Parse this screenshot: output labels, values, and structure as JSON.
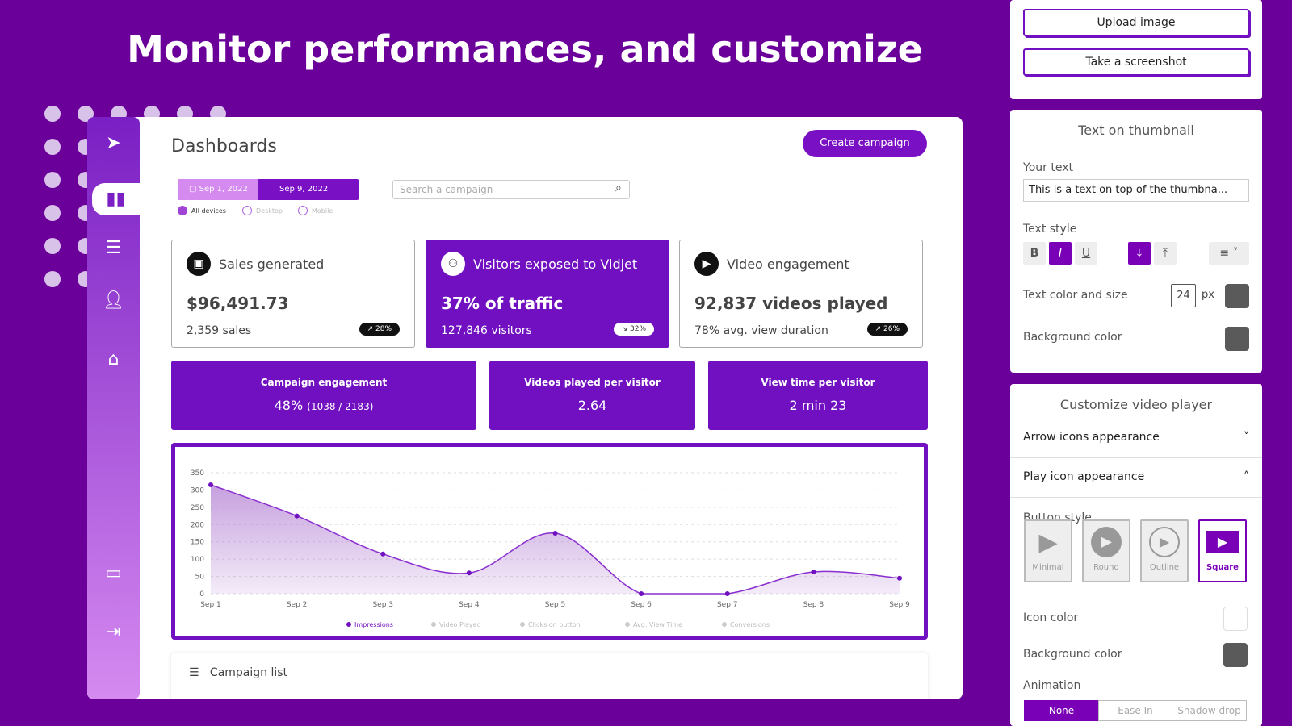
{
  "hero": {
    "title": "Monitor performances, and customize"
  },
  "sidebar": {
    "items": [
      {
        "icon": "logo-play-icon"
      },
      {
        "icon": "bar-chart-icon",
        "active": true
      },
      {
        "icon": "menu-icon"
      },
      {
        "icon": "user-icon"
      },
      {
        "icon": "home-icon"
      },
      {
        "icon": "chat-icon"
      },
      {
        "icon": "logout-icon"
      }
    ]
  },
  "dashboard": {
    "title": "Dashboards",
    "create_label": "Create campaign",
    "date_from": "Sep 1, 2022",
    "date_to": "Sep 9, 2022",
    "devices": [
      {
        "label": "All devices",
        "selected": true
      },
      {
        "label": "Desktop",
        "selected": false
      },
      {
        "label": "Mobile",
        "selected": false
      }
    ],
    "search_placeholder": "Search a campaign",
    "cards": [
      {
        "title": "Sales generated",
        "value": "$96,491.73",
        "sub": "2,359 sales",
        "badge": "↗ 28%",
        "icon": "shopping-bag-icon"
      },
      {
        "title": "Visitors exposed to Vidjet",
        "value": "37% of traffic",
        "sub": "127,846 visitors",
        "badge": "↘ 32%",
        "icon": "users-icon"
      },
      {
        "title": "Video engagement",
        "value": "92,837 videos played",
        "sub": "78% avg. view duration",
        "badge": "↗ 26%",
        "icon": "play-circle-icon"
      }
    ],
    "stats": [
      {
        "label": "Campaign engagement",
        "value": "48%",
        "detail": "(1038 / 2183)"
      },
      {
        "label": "Videos played per visitor",
        "value": "2.64"
      },
      {
        "label": "View time per visitor",
        "value": "2 min 23"
      }
    ],
    "campaign_list": "Campaign list",
    "accent": "#7010c0"
  },
  "chart_data": {
    "type": "area",
    "categories": [
      "Sep 1",
      "Sep 2",
      "Sep 3",
      "Sep 4",
      "Sep 5",
      "Sep 6",
      "Sep 7",
      "Sep 8",
      "Sep 9"
    ],
    "series": [
      {
        "name": "Impressions",
        "values": [
          315,
          225,
          115,
          60,
          175,
          0,
          0,
          63,
          45
        ],
        "active": true
      }
    ],
    "legend": [
      {
        "label": "Impressions",
        "active": true
      },
      {
        "label": "Video Played",
        "active": false
      },
      {
        "label": "Clicks on button",
        "active": false
      },
      {
        "label": "Avg. View Time",
        "active": false
      },
      {
        "label": "Conversions",
        "active": false
      }
    ],
    "yticks": [
      "0",
      "50",
      "100",
      "150",
      "200",
      "250",
      "300",
      "350"
    ],
    "ylim": [
      0,
      350
    ],
    "grid": true,
    "legend_position": "bottom"
  },
  "right": {
    "upload_label": "Upload image",
    "screenshot_label": "Take a screenshot",
    "thumb": {
      "title": "Text on thumbnail",
      "your_text_label": "Your text",
      "your_text_value": "This is a text on top of the thumbna...",
      "text_style_label": "Text style",
      "bold": "B",
      "italic": "I",
      "underline": "U",
      "color_size_label": "Text color and size",
      "size": "24",
      "unit": "px",
      "bg_label": "Background color"
    },
    "player": {
      "title": "Customize video player",
      "arrow_label": "Arrow icons appearance",
      "play_label": "Play icon appearance",
      "button_style_label": "Button style",
      "styles": [
        {
          "label": "Minimal"
        },
        {
          "label": "Round"
        },
        {
          "label": "Outline"
        },
        {
          "label": "Square",
          "selected": true
        }
      ],
      "icon_color_label": "Icon color",
      "bg_color_label": "Background color",
      "animation_label": "Animation",
      "animations": [
        {
          "label": "None",
          "selected": true
        },
        {
          "label": "Ease In"
        },
        {
          "label": "Shadow drop"
        }
      ]
    }
  }
}
